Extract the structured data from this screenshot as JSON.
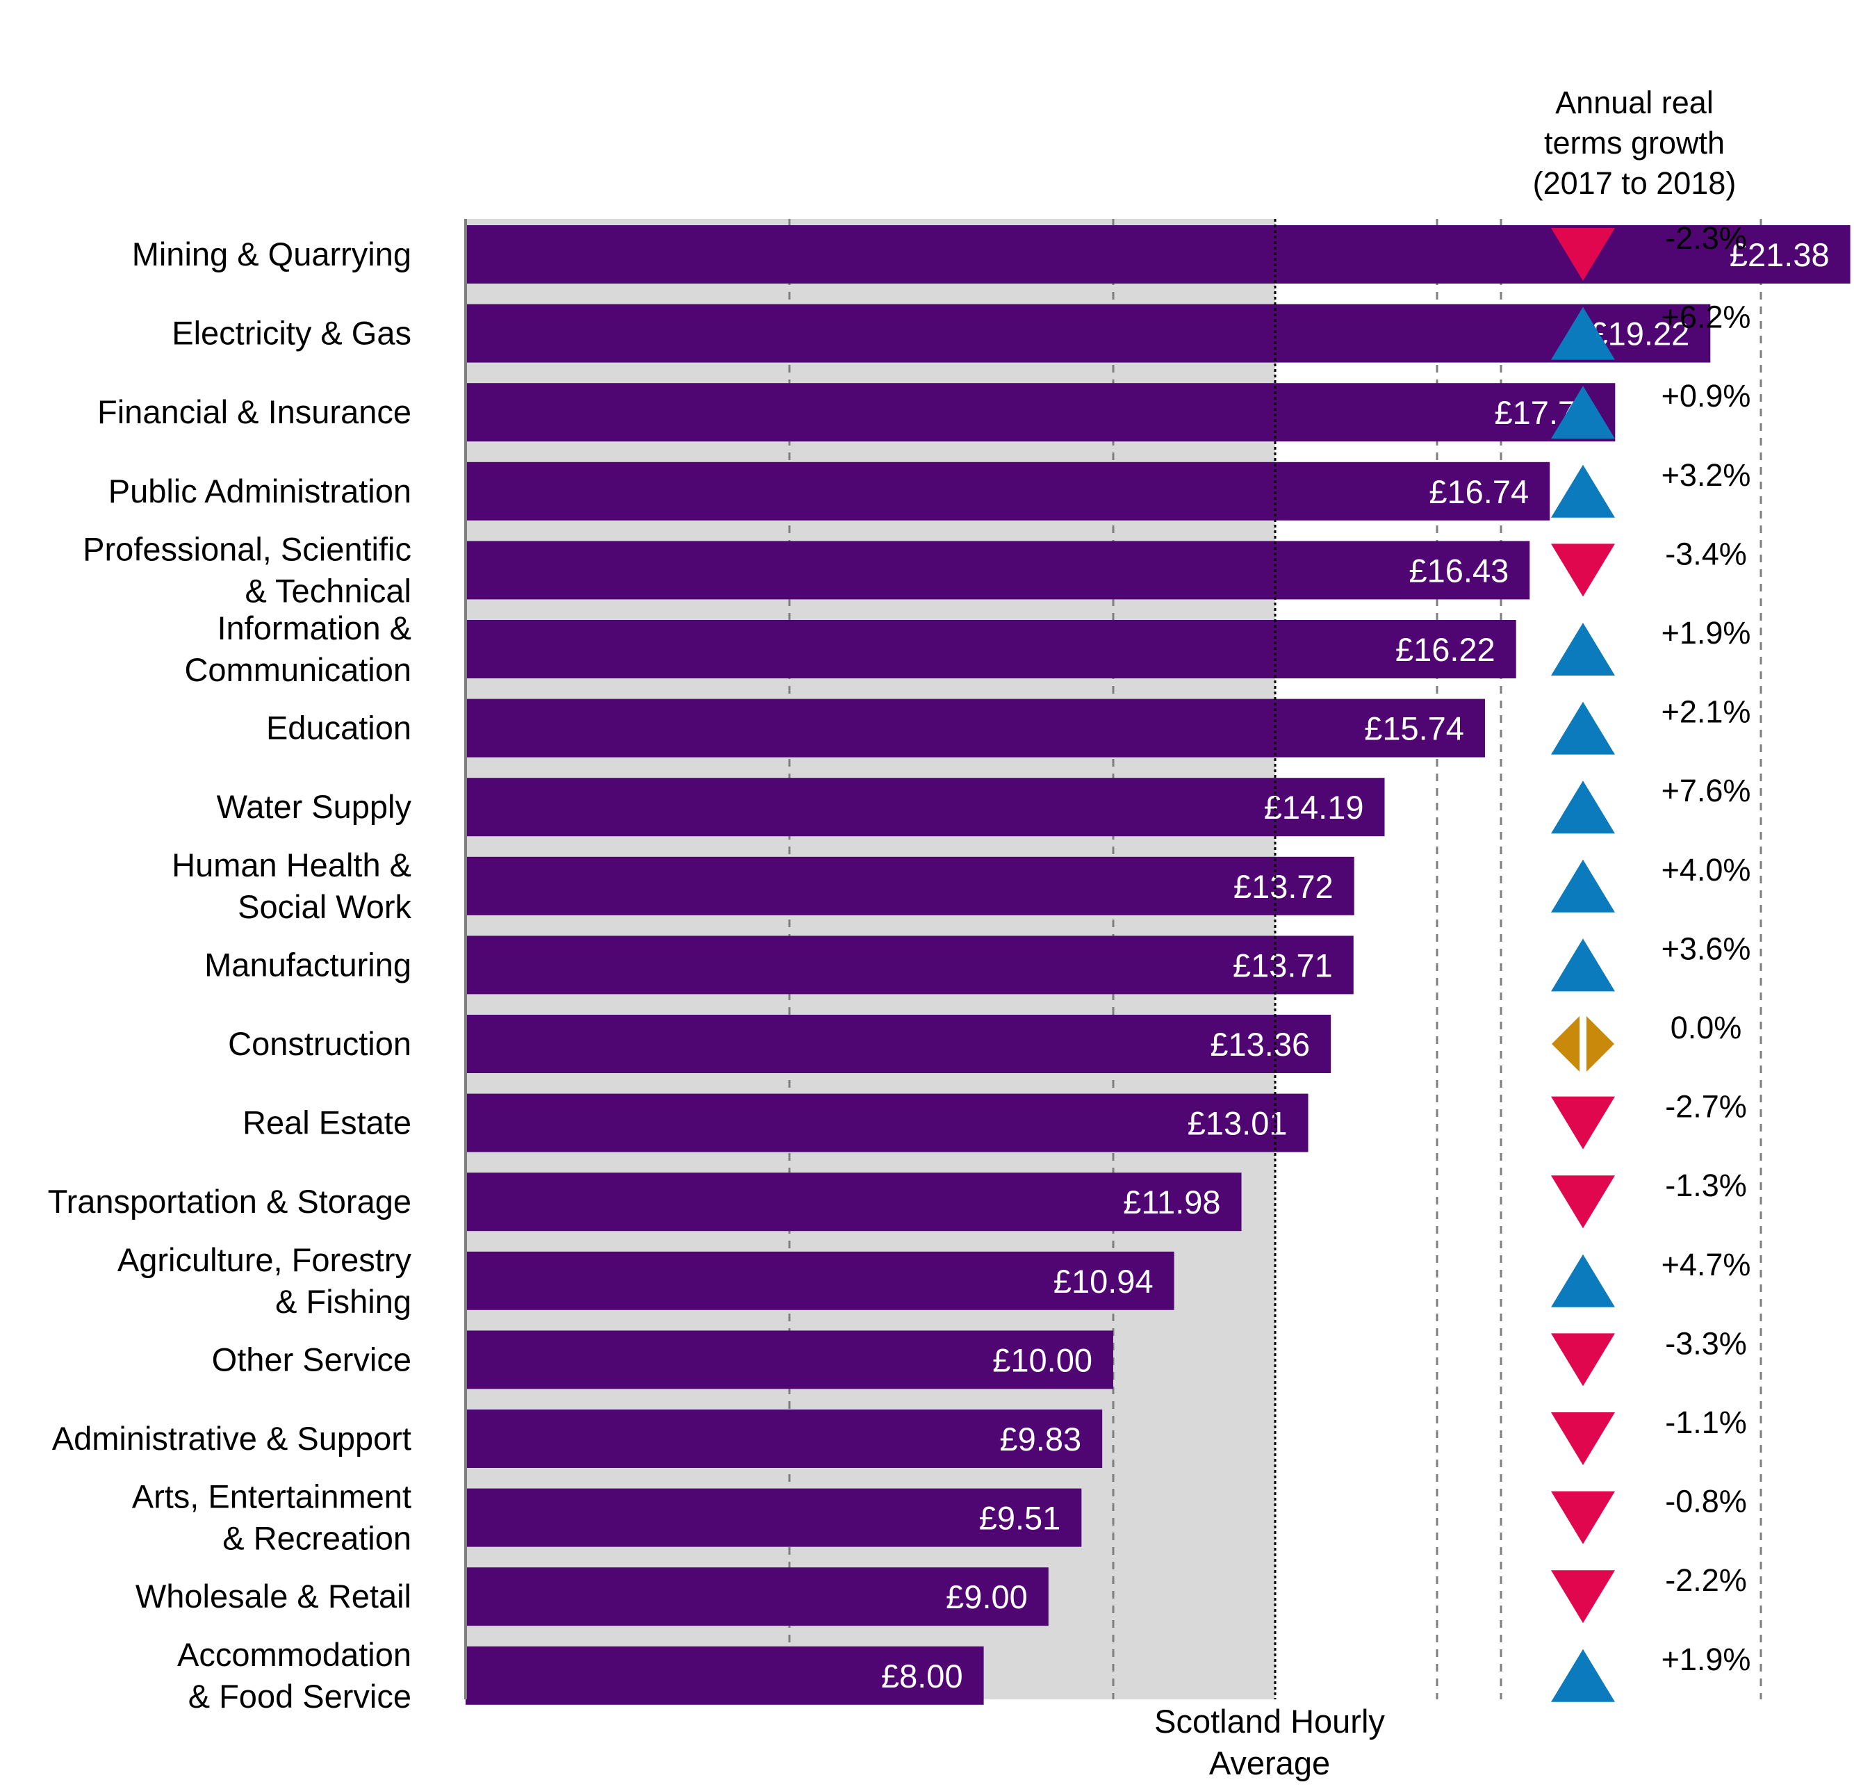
{
  "chart_data": {
    "type": "bar",
    "orientation": "horizontal",
    "categories": [
      [
        "Mining & Quarrying"
      ],
      [
        "Electricity & Gas"
      ],
      [
        "Financial & Insurance"
      ],
      [
        "Public Administration"
      ],
      [
        "Professional, Scientific",
        "& Technical"
      ],
      [
        "Information &",
        "Communication"
      ],
      [
        "Education"
      ],
      [
        "Water Supply"
      ],
      [
        "Human Health &",
        "Social Work"
      ],
      [
        "Manufacturing"
      ],
      [
        "Construction"
      ],
      [
        "Real Estate"
      ],
      [
        "Transportation & Storage"
      ],
      [
        "Agriculture, Forestry",
        "& Fishing"
      ],
      [
        "Other Service"
      ],
      [
        "Administrative & Support"
      ],
      [
        "Arts, Entertainment",
        "& Recreation"
      ],
      [
        "Wholesale & Retail"
      ],
      [
        "Accommodation",
        "& Food Service"
      ]
    ],
    "values": [
      21.38,
      19.22,
      17.75,
      16.74,
      16.43,
      16.22,
      15.74,
      14.19,
      13.72,
      13.71,
      13.36,
      13.01,
      11.98,
      10.94,
      10.0,
      9.83,
      9.51,
      9.0,
      8.0
    ],
    "value_labels": [
      "£21.38",
      "£19.22",
      "£17.75",
      "£16.74",
      "£16.43",
      "£16.22",
      "£15.74",
      "£14.19",
      "£13.72",
      "£13.71",
      "£13.36",
      "£13.01",
      "£11.98",
      "£10.94",
      "£10.00",
      "£9.83",
      "£9.51",
      "£9.00",
      "£8.00"
    ],
    "growth": [
      -2.3,
      6.2,
      0.9,
      3.2,
      -3.4,
      1.9,
      2.1,
      7.6,
      4.0,
      3.6,
      0.0,
      -2.7,
      -1.3,
      4.7,
      -3.3,
      -1.1,
      -0.8,
      -2.2,
      1.9
    ],
    "growth_labels": [
      "-2.3%",
      "+6.2%",
      "+0.9%",
      "+3.2%",
      "-3.4%",
      "+1.9%",
      "+2.1%",
      "+7.6%",
      "+4.0%",
      "+3.6%",
      "0.0%",
      "-2.7%",
      "-1.3%",
      "+4.7%",
      "-3.3%",
      "-1.1%",
      "-0.8%",
      "-2.2%",
      "+1.9%"
    ],
    "growth_header": [
      "Annual real",
      "terms growth",
      "(2017 to 2018)"
    ],
    "reference": {
      "value": 12.5,
      "label": [
        "Scotland Hourly",
        "Average"
      ]
    },
    "shaded_band": [
      0,
      12.5
    ],
    "xlim": [
      0,
      25
    ],
    "x_gridlines": [
      5,
      10,
      15,
      20
    ],
    "grid": true,
    "legend": "none",
    "colors": {
      "bar": "#4f0672",
      "band": "#d9d9d9",
      "growth_up": "#0b7bbd",
      "growth_down": "#e0074f",
      "growth_flat": "#c98a0b",
      "gridline": "#7f7f7f"
    }
  }
}
